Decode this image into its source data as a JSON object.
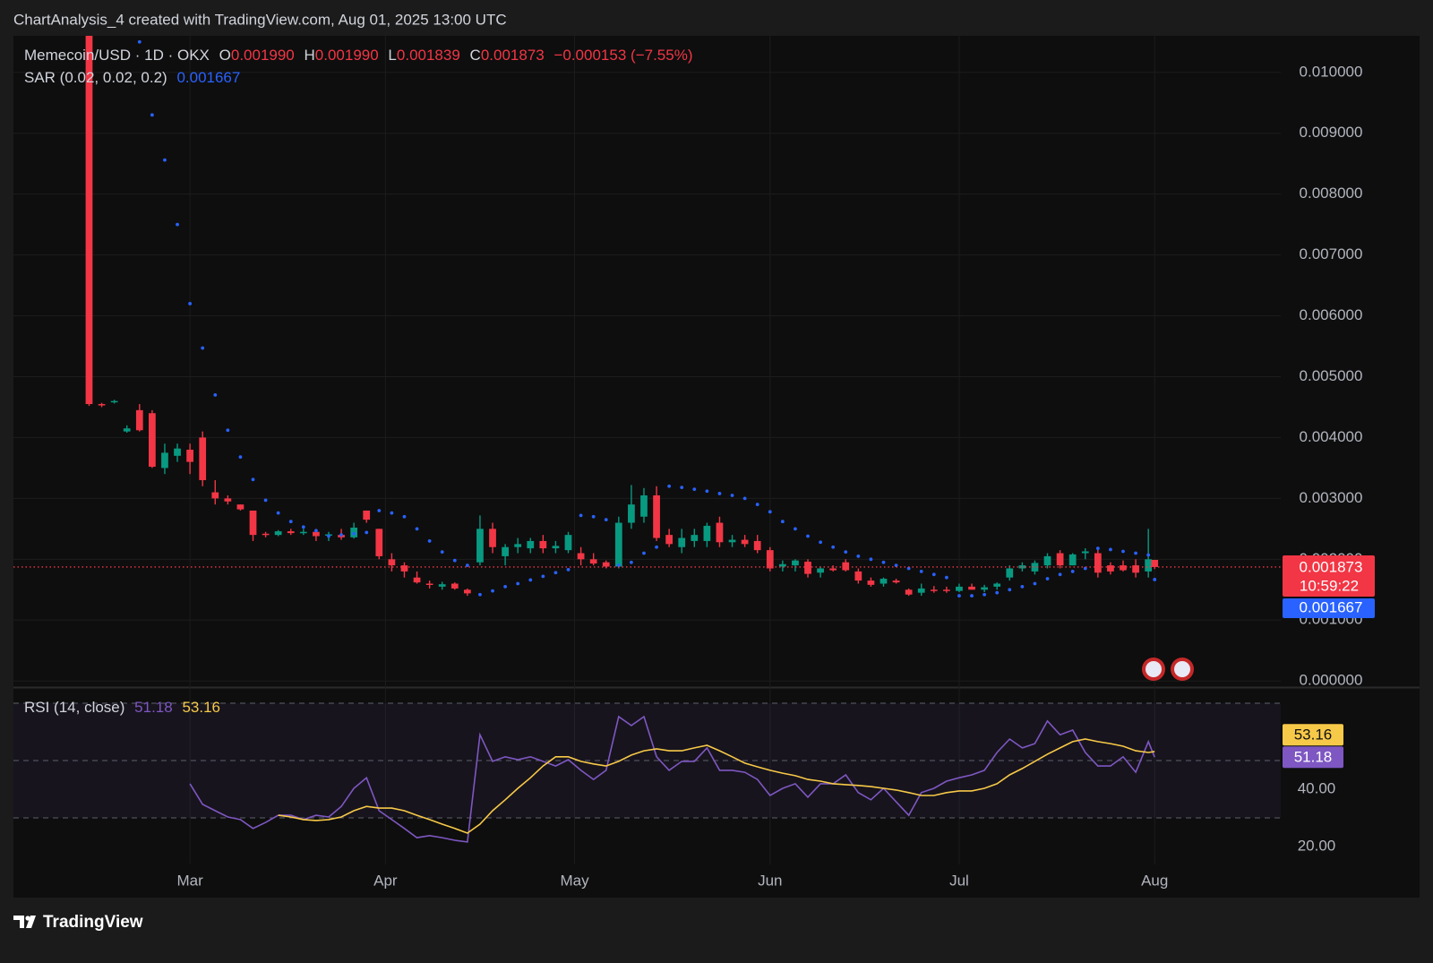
{
  "header": {
    "attribution": "ChartAnalysis_4 created with TradingView.com, Aug 01, 2025 13:00 UTC"
  },
  "footer": {
    "brand": "TradingView"
  },
  "chart_data": [
    {
      "type": "candlestick",
      "title": "Memecoin/USD · 1D · OKX",
      "legend": {
        "open_label": "O",
        "open": {
          "value": 0.00199,
          "label": "0.001990"
        },
        "high_label": "H",
        "high": {
          "value": 0.00199,
          "label": "0.001990"
        },
        "low_label": "L",
        "low": {
          "value": 0.001839,
          "label": "0.001839"
        },
        "close_label": "C",
        "close": {
          "value": 0.001873,
          "label": "0.001873"
        },
        "change": {
          "value": -0.000153,
          "label": "−0.000153"
        },
        "change_percent": {
          "value": -7.55,
          "label": "(−7.55%)"
        }
      },
      "x": [
        12,
        14,
        16,
        18,
        20,
        22,
        24,
        26,
        28,
        30,
        32,
        34,
        36,
        38,
        40,
        42,
        44,
        46,
        48,
        50,
        52,
        54,
        56,
        58,
        60,
        62,
        64,
        66,
        68,
        70,
        72,
        74,
        76,
        78,
        80,
        82,
        84,
        86,
        88,
        90,
        92,
        94,
        96,
        98,
        100,
        102,
        104,
        106,
        108,
        110,
        112,
        114,
        116,
        118,
        120,
        122,
        124,
        126,
        128,
        130,
        132,
        134,
        136,
        138,
        140,
        142,
        144,
        146,
        148,
        150,
        152,
        154,
        156,
        158,
        160,
        162,
        164,
        166,
        168,
        170,
        172,
        174,
        176,
        178,
        180,
        181
      ],
      "xlim": [
        0,
        201
      ],
      "xticks": [
        {
          "value": 28,
          "label": "Mar"
        },
        {
          "value": 59,
          "label": "Apr"
        },
        {
          "value": 89,
          "label": "May"
        },
        {
          "value": 120,
          "label": "Jun"
        },
        {
          "value": 150,
          "label": "Jul"
        },
        {
          "value": 181,
          "label": "Aug"
        }
      ],
      "ohlc": [
        [
          0.0106,
          0.0106,
          0.00452,
          0.00455
        ],
        [
          0.00455,
          0.00457,
          0.0045,
          0.00453
        ],
        [
          0.00458,
          0.00462,
          0.00456,
          0.0046
        ],
        [
          0.0041,
          0.0042,
          0.00408,
          0.00415
        ],
        [
          0.00445,
          0.00455,
          0.0041,
          0.00412
        ],
        [
          0.0044,
          0.00445,
          0.0035,
          0.00352
        ],
        [
          0.0035,
          0.0039,
          0.0034,
          0.00375
        ],
        [
          0.0037,
          0.0039,
          0.0036,
          0.00382
        ],
        [
          0.0038,
          0.0039,
          0.0034,
          0.0036
        ],
        [
          0.004,
          0.0041,
          0.0032,
          0.0033
        ],
        [
          0.0031,
          0.0033,
          0.0029,
          0.003
        ],
        [
          0.003,
          0.00305,
          0.0029,
          0.00295
        ],
        [
          0.0029,
          0.0029,
          0.0028,
          0.00282
        ],
        [
          0.0028,
          0.0028,
          0.0023,
          0.0024
        ],
        [
          0.00242,
          0.00245,
          0.00236,
          0.0024
        ],
        [
          0.0024,
          0.00248,
          0.00238,
          0.00246
        ],
        [
          0.00246,
          0.0025,
          0.0024,
          0.00243
        ],
        [
          0.00243,
          0.0025,
          0.0024,
          0.00245
        ],
        [
          0.00245,
          0.0025,
          0.0023,
          0.00238
        ],
        [
          0.0024,
          0.00245,
          0.0023,
          0.00241
        ],
        [
          0.0024,
          0.0025,
          0.00232,
          0.00236
        ],
        [
          0.00236,
          0.0026,
          0.00234,
          0.00252
        ],
        [
          0.0028,
          0.0028,
          0.0026,
          0.00265
        ],
        [
          0.0025,
          0.0025,
          0.002,
          0.00205
        ],
        [
          0.002,
          0.0021,
          0.0018,
          0.0019
        ],
        [
          0.0019,
          0.00195,
          0.0017,
          0.0018
        ],
        [
          0.0017,
          0.0018,
          0.0016,
          0.00162
        ],
        [
          0.0016,
          0.00165,
          0.00152,
          0.00158
        ],
        [
          0.00155,
          0.00163,
          0.0015,
          0.00159
        ],
        [
          0.0016,
          0.00162,
          0.0015,
          0.00152
        ],
        [
          0.0015,
          0.00152,
          0.0014,
          0.00144
        ],
        [
          0.00195,
          0.00272,
          0.0019,
          0.0025
        ],
        [
          0.0025,
          0.0026,
          0.0021,
          0.0022
        ],
        [
          0.00205,
          0.00225,
          0.0019,
          0.0022
        ],
        [
          0.0022,
          0.00235,
          0.0021,
          0.00225
        ],
        [
          0.00218,
          0.00235,
          0.0021,
          0.0023
        ],
        [
          0.0023,
          0.0024,
          0.0021,
          0.00218
        ],
        [
          0.00218,
          0.0023,
          0.0021,
          0.00222
        ],
        [
          0.00215,
          0.00245,
          0.0021,
          0.0024
        ],
        [
          0.0021,
          0.0022,
          0.0019,
          0.002
        ],
        [
          0.002,
          0.0021,
          0.0019,
          0.00193
        ],
        [
          0.00195,
          0.00198,
          0.00185,
          0.00188
        ],
        [
          0.00188,
          0.0027,
          0.00185,
          0.0026
        ],
        [
          0.0026,
          0.00322,
          0.0025,
          0.0029
        ],
        [
          0.0027,
          0.00317,
          0.0026,
          0.00305
        ],
        [
          0.00305,
          0.0032,
          0.0023,
          0.00235
        ],
        [
          0.0024,
          0.0025,
          0.0022,
          0.00225
        ],
        [
          0.0022,
          0.0025,
          0.0021,
          0.00235
        ],
        [
          0.0023,
          0.0025,
          0.0022,
          0.0024
        ],
        [
          0.0023,
          0.0026,
          0.0022,
          0.00255
        ],
        [
          0.0026,
          0.0027,
          0.0022,
          0.00228
        ],
        [
          0.00228,
          0.0024,
          0.0022,
          0.00232
        ],
        [
          0.00232,
          0.0024,
          0.0022,
          0.00225
        ],
        [
          0.0023,
          0.0024,
          0.0021,
          0.00215
        ],
        [
          0.00215,
          0.0022,
          0.0018,
          0.00185
        ],
        [
          0.00188,
          0.00198,
          0.0018,
          0.00192
        ],
        [
          0.0019,
          0.002,
          0.0018,
          0.00198
        ],
        [
          0.00196,
          0.002,
          0.0017,
          0.00176
        ],
        [
          0.00178,
          0.00188,
          0.0017,
          0.00185
        ],
        [
          0.00185,
          0.0019,
          0.0018,
          0.00182
        ],
        [
          0.00195,
          0.002,
          0.0018,
          0.00182
        ],
        [
          0.0018,
          0.00185,
          0.0016,
          0.00165
        ],
        [
          0.00165,
          0.0017,
          0.00155,
          0.00158
        ],
        [
          0.0016,
          0.0017,
          0.00155,
          0.00168
        ],
        [
          0.00165,
          0.00168,
          0.0016,
          0.00162
        ],
        [
          0.0015,
          0.00152,
          0.0014,
          0.00142
        ],
        [
          0.00145,
          0.0016,
          0.0014,
          0.00152
        ],
        [
          0.0015,
          0.00156,
          0.00145,
          0.00148
        ],
        [
          0.0015,
          0.00155,
          0.00145,
          0.00148
        ],
        [
          0.00148,
          0.0016,
          0.00146,
          0.00155
        ],
        [
          0.00155,
          0.0016,
          0.0015,
          0.0015
        ],
        [
          0.0015,
          0.00158,
          0.00146,
          0.00154
        ],
        [
          0.00155,
          0.00162,
          0.0015,
          0.0016
        ],
        [
          0.0017,
          0.0019,
          0.00165,
          0.00185
        ],
        [
          0.00185,
          0.00195,
          0.0018,
          0.0019
        ],
        [
          0.0018,
          0.00198,
          0.00175,
          0.00194
        ],
        [
          0.0019,
          0.0021,
          0.00185,
          0.00205
        ],
        [
          0.0021,
          0.00215,
          0.00185,
          0.0019
        ],
        [
          0.0019,
          0.0021,
          0.0019,
          0.00208
        ],
        [
          0.0021,
          0.00218,
          0.002,
          0.00213
        ],
        [
          0.0021,
          0.0022,
          0.0017,
          0.00178
        ],
        [
          0.0019,
          0.00195,
          0.00175,
          0.0018
        ],
        [
          0.0019,
          0.00198,
          0.0018,
          0.00182
        ],
        [
          0.0019,
          0.002,
          0.0017,
          0.00178
        ],
        [
          0.0018,
          0.0025,
          0.0017,
          0.002
        ],
        [
          0.00199,
          0.00199,
          0.001839,
          0.001873
        ]
      ],
      "up_color": "#089981",
      "down_color": "#f23645",
      "ylim": [
        -0.0001,
        0.0106
      ],
      "yticks": [
        {
          "value": 0,
          "label": "0.000000"
        },
        {
          "value": 0.001,
          "label": "0.001000"
        },
        {
          "value": 0.002,
          "label": "0.002000"
        },
        {
          "value": 0.003,
          "label": "0.003000"
        },
        {
          "value": 0.004,
          "label": "0.004000"
        },
        {
          "value": 0.005,
          "label": "0.005000"
        },
        {
          "value": 0.006,
          "label": "0.006000"
        },
        {
          "value": 0.007,
          "label": "0.007000"
        },
        {
          "value": 0.008,
          "label": "0.008000"
        },
        {
          "value": 0.009,
          "label": "0.009000"
        },
        {
          "value": 0.01,
          "label": "0.010000"
        }
      ],
      "grid": true,
      "last_price": {
        "value": 0.001873,
        "label": "0.001873"
      },
      "countdown": "10:59:22",
      "overlay": {
        "name": "SAR (0.02, 0.02, 0.2)",
        "color": "#2962ff",
        "values": [
          null,
          null,
          null,
          null,
          0.0105,
          0.0093,
          0.00856,
          0.0075,
          0.0062,
          0.00547,
          0.0047,
          0.00412,
          0.00368,
          0.00331,
          0.00297,
          0.00276,
          0.00262,
          0.00253,
          0.00247,
          0.00238,
          0.0024,
          0.00242,
          0.00244,
          0.0028,
          0.00276,
          0.0027,
          0.0025,
          0.0023,
          0.00212,
          0.00198,
          0.0019,
          0.00142,
          0.00148,
          0.00155,
          0.0016,
          0.00166,
          0.00172,
          0.00178,
          0.00183,
          0.00272,
          0.0027,
          0.00265,
          0.0019,
          0.00195,
          0.0021,
          0.0022,
          0.0032,
          0.00318,
          0.00315,
          0.00312,
          0.00308,
          0.00305,
          0.003,
          0.0029,
          0.00278,
          0.00262,
          0.0025,
          0.00238,
          0.00228,
          0.0022,
          0.00212,
          0.00205,
          0.002,
          0.00195,
          0.0019,
          0.00185,
          0.0018,
          0.00175,
          0.0017,
          0.0014,
          0.0014,
          0.00142,
          0.00145,
          0.0015,
          0.00155,
          0.0016,
          0.00168,
          0.00175,
          0.0018,
          0.00185,
          0.00218,
          0.00216,
          0.00213,
          0.0021,
          0.00207,
          0.001667
        ],
        "last": {
          "value": 0.001667,
          "label": "0.001667"
        }
      }
    },
    {
      "type": "line",
      "title": "RSI (14, close)",
      "ylim": [
        13.75,
        75.3
      ],
      "yticks": [
        {
          "value": 20,
          "label": "20.00"
        },
        {
          "value": 40,
          "label": "40.00"
        }
      ],
      "levels": [
        30,
        50,
        70
      ],
      "series": [
        {
          "color": "#7e57c2",
          "values": [
            null,
            null,
            null,
            null,
            null,
            null,
            null,
            null,
            41.9,
            34.7,
            32.5,
            30.3,
            29.4,
            26.3,
            28.4,
            30.9,
            30.9,
            29.4,
            30.9,
            30.3,
            34,
            40.3,
            44,
            32.5,
            29.4,
            26.3,
            23.1,
            23.8,
            23.1,
            22.2,
            21.6,
            59,
            49.7,
            51.3,
            50.3,
            51.3,
            49.7,
            48.1,
            50.3,
            46.6,
            43.4,
            46.6,
            65.3,
            62.2,
            65.3,
            51.3,
            46.6,
            49.7,
            49.7,
            54.4,
            46.6,
            46.6,
            45.9,
            43.4,
            37.8,
            40.3,
            41.9,
            37.2,
            41.9,
            41.9,
            45,
            38.8,
            36.3,
            40.3,
            35.6,
            30.9,
            38.8,
            40.3,
            42.8,
            44,
            45,
            46.6,
            52.8,
            57.5,
            54.4,
            55.9,
            63.8,
            59,
            60.6,
            52.8,
            48.1,
            48.1,
            51.3,
            45.9,
            56.6,
            51.18
          ]
        },
        {
          "color": "#f7c948",
          "values": [
            null,
            null,
            null,
            null,
            null,
            null,
            null,
            null,
            null,
            null,
            null,
            null,
            null,
            null,
            null,
            30.9,
            30.3,
            29.4,
            29.1,
            29.4,
            30.3,
            32.5,
            34,
            33.4,
            33.4,
            32.5,
            30.9,
            29.4,
            27.8,
            26.3,
            24.7,
            27.8,
            32.5,
            36.3,
            40.3,
            44,
            48.1,
            51.3,
            51.3,
            49.7,
            48.8,
            48.1,
            49.7,
            51.9,
            53.4,
            54.1,
            53.4,
            53.4,
            54.4,
            55.3,
            53.4,
            51.3,
            49.1,
            47.8,
            46.6,
            45.6,
            44.7,
            43.4,
            42.8,
            41.9,
            41.6,
            41.3,
            40.9,
            40.3,
            39.7,
            38.8,
            37.8,
            37.8,
            38.8,
            39.4,
            39.4,
            40.3,
            41.9,
            45,
            47.2,
            49.7,
            52.2,
            54.4,
            56.6,
            57.5,
            56.6,
            55.9,
            55,
            53.4,
            52.8,
            53.16
          ]
        }
      ]
    }
  ]
}
